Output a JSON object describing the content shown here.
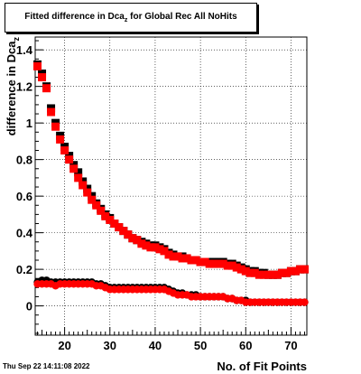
{
  "title": {
    "main": "Fitted difference in Dca",
    "subscript": "z",
    "suffix": " for Global Rec All NoHits"
  },
  "timestamp": "Thu Sep 22 14:11:08 2022",
  "chart_data": {
    "type": "scatter",
    "xlabel": "No. of Fit Points",
    "ylabel": "difference in Dca",
    "ylabel_subscript": "z",
    "xlim": [
      13.5,
      73.5
    ],
    "ylim": [
      -0.16,
      1.47
    ],
    "xticks": [
      20,
      30,
      40,
      50,
      60,
      70
    ],
    "yticks": [
      0,
      0.2,
      0.4,
      0.6,
      0.8,
      1,
      1.2,
      1.4
    ],
    "grid": true,
    "series": [
      {
        "color": "#000000",
        "marker": "square",
        "x": [
          14,
          15,
          16,
          17,
          18,
          19,
          20,
          21,
          22,
          23,
          24,
          25,
          26,
          27,
          28,
          29,
          30,
          31,
          32,
          33,
          34,
          35,
          36,
          37,
          38,
          39,
          40,
          41,
          42,
          43,
          44,
          45,
          46,
          47,
          48,
          49,
          50,
          51,
          52,
          53,
          54,
          55,
          56,
          57,
          58,
          59,
          60,
          61,
          62,
          63,
          64,
          65,
          66,
          67,
          68,
          69,
          70,
          71,
          72,
          73
        ],
        "y": [
          1.32,
          1.27,
          1.2,
          1.08,
          1.0,
          0.93,
          0.87,
          0.82,
          0.77,
          0.73,
          0.68,
          0.64,
          0.6,
          0.56,
          0.53,
          0.5,
          0.48,
          0.45,
          0.43,
          0.41,
          0.39,
          0.37,
          0.36,
          0.35,
          0.34,
          0.33,
          0.33,
          0.32,
          0.31,
          0.29,
          0.28,
          0.27,
          0.27,
          0.26,
          0.25,
          0.25,
          0.24,
          0.24,
          0.24,
          0.24,
          0.24,
          0.24,
          0.23,
          0.23,
          0.22,
          0.21,
          0.2,
          0.19,
          0.19,
          0.18,
          0.18,
          0.17,
          0.17,
          0.17,
          0.18,
          0.18,
          0.19,
          0.19,
          0.2,
          0.2
        ]
      },
      {
        "color": "#ff0000",
        "marker": "square",
        "x": [
          14,
          15,
          16,
          17,
          18,
          19,
          20,
          21,
          22,
          23,
          24,
          25,
          26,
          27,
          28,
          29,
          30,
          31,
          32,
          33,
          34,
          35,
          36,
          37,
          38,
          39,
          40,
          41,
          42,
          43,
          44,
          45,
          46,
          47,
          48,
          49,
          50,
          51,
          52,
          53,
          54,
          55,
          56,
          57,
          58,
          59,
          60,
          61,
          62,
          63,
          64,
          65,
          66,
          67,
          68,
          69,
          70,
          71,
          72,
          73
        ],
        "y": [
          1.31,
          1.25,
          1.19,
          1.06,
          0.98,
          0.91,
          0.85,
          0.8,
          0.75,
          0.7,
          0.66,
          0.62,
          0.58,
          0.55,
          0.52,
          0.49,
          0.47,
          0.45,
          0.43,
          0.41,
          0.39,
          0.37,
          0.36,
          0.34,
          0.33,
          0.32,
          0.32,
          0.31,
          0.3,
          0.28,
          0.27,
          0.27,
          0.26,
          0.26,
          0.25,
          0.25,
          0.24,
          0.24,
          0.23,
          0.23,
          0.23,
          0.23,
          0.22,
          0.22,
          0.21,
          0.2,
          0.19,
          0.18,
          0.18,
          0.17,
          0.17,
          0.17,
          0.17,
          0.17,
          0.18,
          0.18,
          0.19,
          0.19,
          0.2,
          0.2
        ]
      },
      {
        "color": "#000000",
        "marker": "circle",
        "x": [
          14,
          15,
          16,
          17,
          18,
          19,
          20,
          21,
          22,
          23,
          24,
          25,
          26,
          27,
          28,
          29,
          30,
          31,
          32,
          33,
          34,
          35,
          36,
          37,
          38,
          39,
          40,
          41,
          42,
          43,
          44,
          45,
          46,
          47,
          48,
          49,
          50,
          51,
          52,
          53,
          54,
          55,
          56,
          57,
          58,
          59,
          60,
          61,
          62,
          63,
          64,
          65,
          66,
          67,
          68,
          69,
          70,
          71,
          72,
          73
        ],
        "y": [
          0.13,
          0.14,
          0.14,
          0.13,
          0.13,
          0.13,
          0.13,
          0.13,
          0.13,
          0.13,
          0.13,
          0.13,
          0.13,
          0.12,
          0.12,
          0.11,
          0.1,
          0.1,
          0.1,
          0.1,
          0.1,
          0.1,
          0.1,
          0.1,
          0.1,
          0.1,
          0.1,
          0.1,
          0.1,
          0.09,
          0.08,
          0.07,
          0.07,
          0.06,
          0.06,
          0.06,
          0.05,
          0.05,
          0.05,
          0.05,
          0.05,
          0.05,
          0.04,
          0.04,
          0.03,
          0.03,
          0.03,
          0.02,
          0.02,
          0.02,
          0.02,
          0.02,
          0.02,
          0.02,
          0.02,
          0.02,
          0.02,
          0.02,
          0.02,
          0.02
        ]
      },
      {
        "color": "#ff0000",
        "marker": "circle",
        "x": [
          14,
          15,
          16,
          17,
          18,
          19,
          20,
          21,
          22,
          23,
          24,
          25,
          26,
          27,
          28,
          29,
          30,
          31,
          32,
          33,
          34,
          35,
          36,
          37,
          38,
          39,
          40,
          41,
          42,
          43,
          44,
          45,
          46,
          47,
          48,
          49,
          50,
          51,
          52,
          53,
          54,
          55,
          56,
          57,
          58,
          59,
          60,
          61,
          62,
          63,
          64,
          65,
          66,
          67,
          68,
          69,
          70,
          71,
          72,
          73
        ],
        "y": [
          0.12,
          0.12,
          0.12,
          0.12,
          0.11,
          0.12,
          0.12,
          0.12,
          0.12,
          0.12,
          0.12,
          0.12,
          0.12,
          0.11,
          0.11,
          0.1,
          0.09,
          0.09,
          0.09,
          0.09,
          0.09,
          0.09,
          0.09,
          0.09,
          0.09,
          0.09,
          0.09,
          0.09,
          0.09,
          0.08,
          0.07,
          0.06,
          0.06,
          0.06,
          0.05,
          0.05,
          0.05,
          0.05,
          0.05,
          0.05,
          0.05,
          0.05,
          0.04,
          0.04,
          0.03,
          0.03,
          0.02,
          0.02,
          0.02,
          0.02,
          0.02,
          0.02,
          0.02,
          0.02,
          0.02,
          0.02,
          0.02,
          0.02,
          0.02,
          0.02
        ]
      }
    ]
  }
}
